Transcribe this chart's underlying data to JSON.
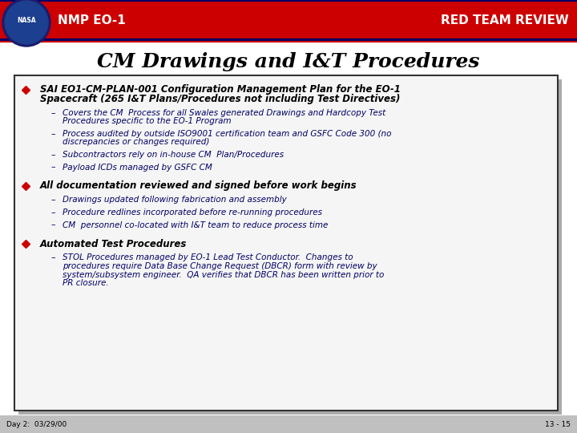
{
  "bg_color": "#ffffff",
  "header_bg": "#cc0000",
  "header_left": "NMP EO-1",
  "header_right": "RED TEAM REVIEW",
  "header_text_color": "#ffffff",
  "title": "CM Drawings and I&T Procedures",
  "title_color": "#000000",
  "box_bg": "#f5f5f5",
  "box_border": "#333333",
  "bullet_color": "#cc0000",
  "bullet_text_color": "#000000",
  "sub_text_color": "#000066",
  "footer_left": "Day 2:  03/29/00",
  "footer_right": "13 - 15",
  "bullets": [
    {
      "text": "SAI EO1-CM-PLAN-001 Configuration Management Plan for the EO-1\nSpacecraft (265 I&T Plans/Procedures not including Test Directives)",
      "subs": [
        "Covers the CM  Process for all Swales generated Drawings and Hardcopy Test\nProcedures specific to the EO-1 Program",
        "Process audited by outside ISO9001 certification team and GSFC Code 300 (no\ndiscrepancies or changes required)",
        "Subcontractors rely on in-house CM  Plan/Procedures",
        "Payload ICDs managed by GSFC CM"
      ]
    },
    {
      "text": "All documentation reviewed and signed before work begins",
      "subs": [
        "Drawings updated following fabrication and assembly",
        "Procedure redlines incorporated before re-running procedures",
        "CM  personnel co-located with I&T team to reduce process time"
      ]
    },
    {
      "text": "Automated Test Procedures",
      "subs": [
        "STOL Procedures managed by EO-1 Lead Test Conductor.  Changes to\nprocedures require Data Base Change Request (DBCR) form with review by\nsystem/subsystem engineer.  QA verifies that DBCR has been written prior to\nPR closure."
      ]
    }
  ]
}
